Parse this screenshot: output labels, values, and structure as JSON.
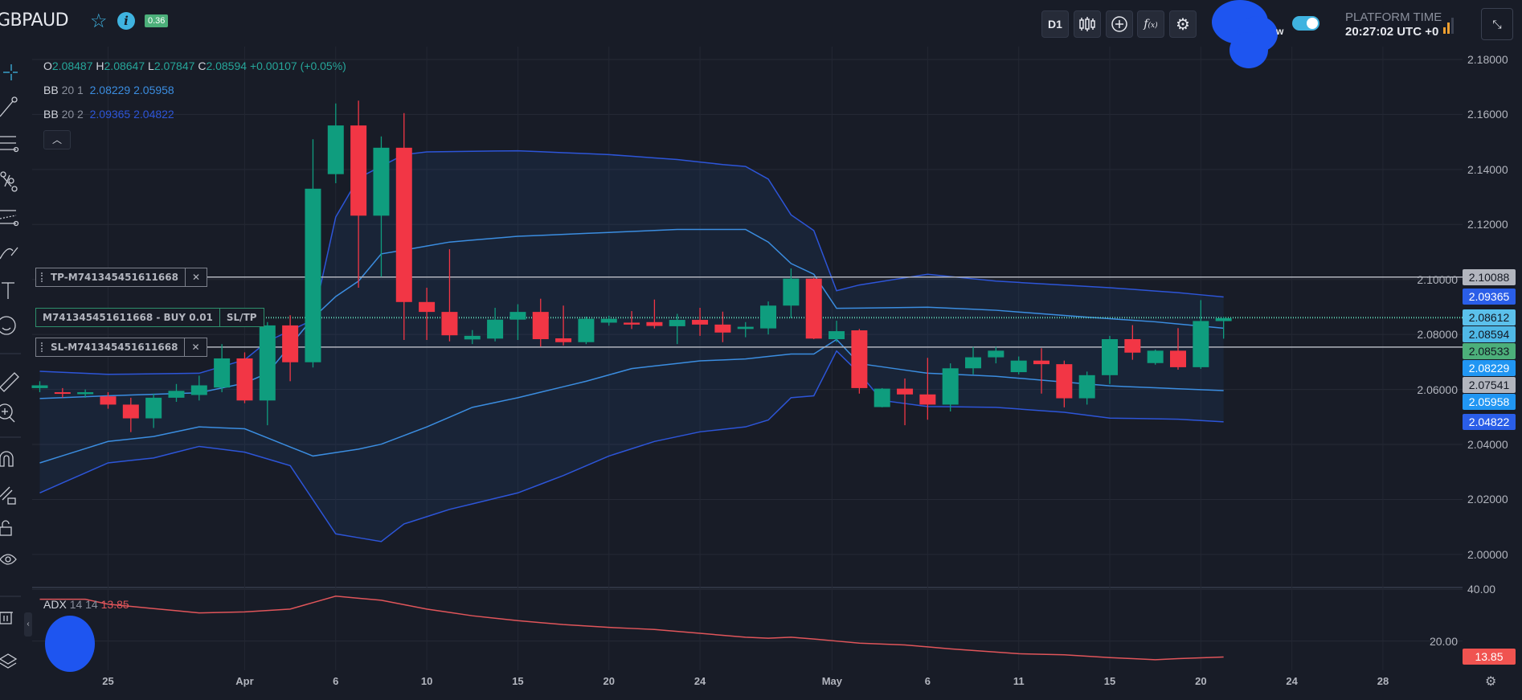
{
  "header": {
    "symbol": "GBPAUD",
    "spread_badge": "0.36",
    "timeframe": "D1",
    "toggle_label_fragment": "w",
    "platform_time_label": "PLATFORM TIME",
    "platform_time": "20:27:02 UTC +0",
    "icons": [
      "star-icon",
      "info-icon",
      "candlestick-type-icon",
      "add-icon",
      "indicators-fx-icon",
      "gear-icon",
      "signal-icon",
      "compress-icon"
    ]
  },
  "legend": {
    "ohlc": {
      "o_label": "O",
      "o": "2.08487",
      "h_label": "H",
      "h": "2.08647",
      "l_label": "L",
      "l": "2.07847",
      "c_label": "C",
      "c": "2.08594",
      "change": "+0.00107 (+0.05%)"
    },
    "bb1": {
      "name": "BB",
      "params": "20 1",
      "upper": "2.08229",
      "lower": "2.05958"
    },
    "bb2": {
      "name": "BB",
      "params": "20 2",
      "upper": "2.09365",
      "lower": "2.04822"
    },
    "adx": {
      "name": "ADX",
      "params": "14 14",
      "value": "13.85"
    },
    "collapse_icon": "chevron-up-icon"
  },
  "trades": {
    "tp_label": "TP-M741345451611668",
    "entry_label": "M741345451611668 - BUY 0.01",
    "sltp_button": "SL/TP",
    "sl_label": "SL-M741345451611668",
    "tp_price": 2.10088,
    "entry_price": 2.08612,
    "sl_price": 2.07541
  },
  "price_labels": [
    {
      "text": "2.10088",
      "value": 2.10088,
      "bg": "#b2b5be",
      "fg": "#131722"
    },
    {
      "text": "2.09365",
      "value": 2.09365,
      "bg": "#2a5ee8",
      "fg": "#ffffff"
    },
    {
      "text": "2.08612",
      "value": 2.08612,
      "bg": "#5bc0eb",
      "fg": "#131722"
    },
    {
      "text": "2.08594",
      "value": 2.08594,
      "bg": "#4fb8e6",
      "fg": "#131722"
    },
    {
      "text": "2.08533",
      "value": 2.08533,
      "bg": "#4caf7a",
      "fg": "#131722"
    },
    {
      "text": "2.08229",
      "value": 2.08229,
      "bg": "#2196f3",
      "fg": "#ffffff"
    },
    {
      "text": "2.07541",
      "value": 2.07541,
      "bg": "#b2b5be",
      "fg": "#131722"
    },
    {
      "text": "2.05958",
      "value": 2.05958,
      "bg": "#2196f3",
      "fg": "#ffffff"
    },
    {
      "text": "2.04822",
      "value": 2.04822,
      "bg": "#2a5ee8",
      "fg": "#ffffff"
    }
  ],
  "adx_label": {
    "text": "13.85",
    "bg": "#f05350",
    "fg": "#ffffff"
  },
  "colors": {
    "up": "#0f9d7e",
    "down": "#f23645",
    "bb1": "#3b8de0",
    "bb2": "#2d55d8",
    "adx": "#e0555a",
    "background": "#181c27"
  },
  "left_toolbar": [
    "crosshair-icon",
    "trend-line-icon",
    "fib-lines-icon",
    "pattern-icon",
    "channel-icon",
    "brush-icon",
    "text-icon",
    "emoji-icon",
    "ruler-icon",
    "zoom-in-icon",
    "magnet-icon",
    "lock-drawings-icon",
    "lock-icon",
    "eye-icon",
    "trash-icon",
    "layers-icon"
  ],
  "chart_data": {
    "type": "candlestick",
    "y_ticks": [
      "2.18000",
      "2.16000",
      "2.14000",
      "2.12000",
      "2.10000",
      "2.08000",
      "2.06000",
      "2.04000",
      "2.02000",
      "2.00000"
    ],
    "ylim": [
      1.988,
      2.1835
    ],
    "x_ticks": [
      {
        "label": "25",
        "i": 3
      },
      {
        "label": "Apr",
        "i": 9
      },
      {
        "label": "6",
        "i": 13
      },
      {
        "label": "10",
        "i": 17
      },
      {
        "label": "15",
        "i": 21
      },
      {
        "label": "20",
        "i": 25
      },
      {
        "label": "24",
        "i": 29
      },
      {
        "label": "May",
        "i": 34.8
      },
      {
        "label": "6",
        "i": 39
      },
      {
        "label": "11",
        "i": 43
      },
      {
        "label": "15",
        "i": 47
      },
      {
        "label": "20",
        "i": 51
      },
      {
        "label": "24",
        "i": 55
      },
      {
        "label": "28",
        "i": 59
      }
    ],
    "ohlc": [
      [
        2.0605,
        2.063,
        2.059,
        2.0615
      ],
      [
        2.059,
        2.0605,
        2.057,
        2.0585
      ],
      [
        2.0583,
        2.06,
        2.057,
        2.059
      ],
      [
        2.0575,
        2.059,
        2.053,
        2.0545
      ],
      [
        2.0545,
        2.057,
        2.0445,
        2.0495
      ],
      [
        2.0495,
        2.0585,
        2.046,
        2.057
      ],
      [
        2.057,
        2.062,
        2.0555,
        2.0595
      ],
      [
        2.058,
        2.065,
        2.056,
        2.0615
      ],
      [
        2.0607,
        2.0765,
        2.059,
        2.0713
      ],
      [
        2.0713,
        2.0735,
        2.055,
        2.056
      ],
      [
        2.056,
        2.0845,
        2.047,
        2.0833
      ],
      [
        2.0833,
        2.087,
        2.063,
        2.0699
      ],
      [
        2.0699,
        2.151,
        2.068,
        2.133
      ],
      [
        2.1383,
        2.164,
        2.135,
        2.156
      ],
      [
        2.156,
        2.165,
        2.097,
        2.1232
      ],
      [
        2.1232,
        2.152,
        2.101,
        2.1479
      ],
      [
        2.1479,
        2.1605,
        2.078,
        2.0918
      ],
      [
        2.0918,
        2.097,
        2.078,
        2.0882
      ],
      [
        2.0882,
        2.111,
        2.0775,
        2.0797
      ],
      [
        2.0782,
        2.0816,
        2.0765,
        2.0795
      ],
      [
        2.0785,
        2.0897,
        2.0775,
        2.0854
      ],
      [
        2.0854,
        2.091,
        2.078,
        2.0882
      ],
      [
        2.0882,
        2.093,
        2.0756,
        2.0783
      ],
      [
        2.0786,
        2.0905,
        2.076,
        2.0772
      ],
      [
        2.0772,
        2.0865,
        2.0765,
        2.0857
      ],
      [
        2.0843,
        2.0868,
        2.0832,
        2.0857
      ],
      [
        2.0843,
        2.0885,
        2.082,
        2.0836
      ],
      [
        2.0845,
        2.0927,
        2.0822,
        2.0831
      ],
      [
        2.083,
        2.0875,
        2.0765,
        2.0853
      ],
      [
        2.0853,
        2.0897,
        2.0795,
        2.0836
      ],
      [
        2.0836,
        2.0883,
        2.0772,
        2.0807
      ],
      [
        2.082,
        2.0845,
        2.079,
        2.0828
      ],
      [
        2.0822,
        2.092,
        2.08,
        2.0905
      ],
      [
        2.0905,
        2.104,
        2.086,
        2.1003
      ],
      [
        2.1003,
        2.1005,
        2.0783,
        2.0785
      ],
      [
        2.0783,
        2.085,
        2.0772,
        2.0812
      ],
      [
        2.0815,
        2.082,
        2.0585,
        2.0605
      ],
      [
        2.0536,
        2.0605,
        2.0535,
        2.0603
      ],
      [
        2.0603,
        2.064,
        2.047,
        2.0582
      ],
      [
        2.0582,
        2.0715,
        2.049,
        2.0545
      ],
      [
        2.0545,
        2.0695,
        2.052,
        2.0677
      ],
      [
        2.0677,
        2.0755,
        2.0655,
        2.0717
      ],
      [
        2.0717,
        2.0755,
        2.0695,
        2.0741
      ],
      [
        2.0663,
        2.072,
        2.0655,
        2.0705
      ],
      [
        2.0705,
        2.075,
        2.0585,
        2.0692
      ],
      [
        2.0692,
        2.0705,
        2.0535,
        2.0568
      ],
      [
        2.0568,
        2.0665,
        2.0545,
        2.0652
      ],
      [
        2.0652,
        2.0795,
        2.062,
        2.0783
      ],
      [
        2.0783,
        2.0834,
        2.0708,
        2.0734
      ],
      [
        2.0696,
        2.0745,
        2.069,
        2.0741
      ],
      [
        2.0741,
        2.0823,
        2.0672,
        2.0681
      ],
      [
        2.0681,
        2.0925,
        2.0675,
        2.0849
      ],
      [
        2.08487,
        2.08647,
        2.07847,
        2.08594
      ]
    ],
    "bb2_upper": [
      [
        0,
        2.0666
      ],
      [
        3,
        2.0655
      ],
      [
        7,
        2.0659
      ],
      [
        9,
        2.0708
      ],
      [
        10,
        2.0775
      ],
      [
        12,
        2.0853
      ],
      [
        13,
        2.1227
      ],
      [
        14,
        2.1369
      ],
      [
        16,
        2.1454
      ],
      [
        17,
        2.1464
      ],
      [
        21,
        2.1468
      ],
      [
        25,
        2.1454
      ],
      [
        28,
        2.1436
      ],
      [
        30,
        2.1418
      ],
      [
        31,
        2.1411
      ],
      [
        32,
        2.1365
      ],
      [
        33,
        2.1235
      ],
      [
        34,
        2.1178
      ],
      [
        35,
        2.0959
      ],
      [
        36,
        2.098
      ],
      [
        39,
        2.1019
      ],
      [
        42,
        2.0994
      ],
      [
        47,
        2.097
      ],
      [
        50,
        2.0952
      ],
      [
        52,
        2.09365
      ]
    ],
    "bb1_upper": [
      [
        0,
        2.0567
      ],
      [
        3,
        2.0577
      ],
      [
        7,
        2.0588
      ],
      [
        9,
        2.0623
      ],
      [
        10,
        2.0659
      ],
      [
        12,
        2.086
      ],
      [
        13,
        2.0938
      ],
      [
        14,
        2.0994
      ],
      [
        15,
        2.1093
      ],
      [
        16,
        2.1107
      ],
      [
        18,
        2.1136
      ],
      [
        21,
        2.1157
      ],
      [
        25,
        2.1171
      ],
      [
        28,
        2.1182
      ],
      [
        31,
        2.1182
      ],
      [
        32,
        2.1136
      ],
      [
        33,
        2.1058
      ],
      [
        34,
        2.1019
      ],
      [
        35,
        2.0895
      ],
      [
        39,
        2.0899
      ],
      [
        42,
        2.0888
      ],
      [
        46,
        2.0863
      ],
      [
        49,
        2.0846
      ],
      [
        52,
        2.08229
      ]
    ],
    "bb1_lower": [
      [
        0,
        2.0333
      ],
      [
        3,
        2.0411
      ],
      [
        5,
        2.0429
      ],
      [
        7,
        2.0464
      ],
      [
        9,
        2.0457
      ],
      [
        12,
        2.0358
      ],
      [
        14,
        2.0383
      ],
      [
        15,
        2.0401
      ],
      [
        17,
        2.0464
      ],
      [
        19,
        2.0535
      ],
      [
        21,
        2.057
      ],
      [
        24,
        2.063
      ],
      [
        26,
        2.0676
      ],
      [
        29,
        2.0704
      ],
      [
        31,
        2.0711
      ],
      [
        33,
        2.0729
      ],
      [
        34,
        2.0729
      ],
      [
        35,
        2.0782
      ],
      [
        36,
        2.0694
      ],
      [
        39,
        2.0659
      ],
      [
        42,
        2.0648
      ],
      [
        44,
        2.0634
      ],
      [
        47,
        2.0613
      ],
      [
        52,
        2.05958
      ]
    ],
    "bb2_lower": [
      [
        0,
        2.0224
      ],
      [
        3,
        2.0333
      ],
      [
        5,
        2.0351
      ],
      [
        7,
        2.0393
      ],
      [
        9,
        2.0372
      ],
      [
        11,
        2.0323
      ],
      [
        13,
        2.0075
      ],
      [
        15,
        2.0047
      ],
      [
        16,
        2.0111
      ],
      [
        18,
        2.0164
      ],
      [
        21,
        2.0224
      ],
      [
        23,
        2.0287
      ],
      [
        25,
        2.0358
      ],
      [
        27,
        2.0411
      ],
      [
        29,
        2.0446
      ],
      [
        31,
        2.0464
      ],
      [
        32,
        2.0489
      ],
      [
        33,
        2.057
      ],
      [
        34,
        2.0577
      ],
      [
        35,
        2.074
      ],
      [
        36,
        2.0659
      ],
      [
        37,
        2.056
      ],
      [
        39,
        2.0538
      ],
      [
        42,
        2.0535
      ],
      [
        45,
        2.0517
      ],
      [
        47,
        2.0496
      ],
      [
        50,
        2.0492
      ],
      [
        52,
        2.04822
      ]
    ],
    "adx": {
      "y_ticks": [
        "40.00",
        "20.00"
      ],
      "ylim": [
        8.7,
        40.75
      ],
      "values": [
        [
          0,
          36.2
        ],
        [
          2,
          36.2
        ],
        [
          3,
          34.3
        ],
        [
          7,
          30.9
        ],
        [
          9,
          31.3
        ],
        [
          11,
          32.4
        ],
        [
          13,
          37.4
        ],
        [
          15,
          35.8
        ],
        [
          17,
          32.4
        ],
        [
          19,
          29.8
        ],
        [
          21,
          27.9
        ],
        [
          23,
          26.4
        ],
        [
          25,
          25.3
        ],
        [
          27,
          24.5
        ],
        [
          29,
          23.0
        ],
        [
          31,
          21.5
        ],
        [
          32,
          21.1
        ],
        [
          33,
          21.5
        ],
        [
          34,
          20.8
        ],
        [
          36,
          19.2
        ],
        [
          38,
          18.5
        ],
        [
          40,
          17.0
        ],
        [
          43,
          15.1
        ],
        [
          45,
          14.7
        ],
        [
          47,
          13.6
        ],
        [
          49,
          12.8
        ],
        [
          50,
          13.2
        ],
        [
          52,
          13.85
        ]
      ]
    }
  }
}
